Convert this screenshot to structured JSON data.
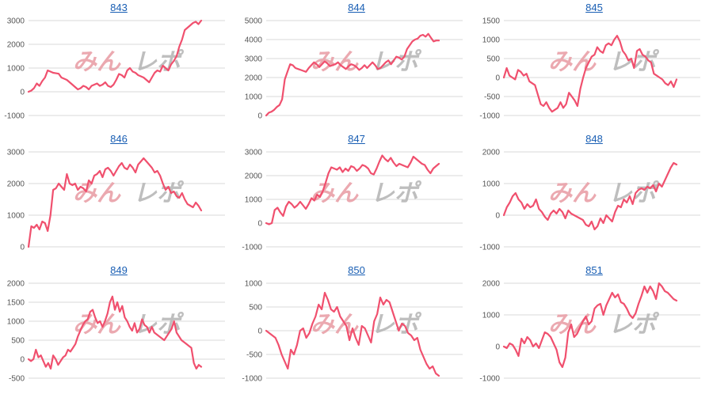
{
  "colors": {
    "line": "#f0506e",
    "grid": "#d9d9d9",
    "watermark_pink": "#e9a0a8",
    "watermark_gray": "#b8b8b8"
  },
  "watermark": {
    "left": "みん",
    "right": "レポ"
  },
  "chart_data": [
    {
      "type": "line",
      "title": "843",
      "ylim": [
        -1000,
        3000
      ],
      "yticks": [
        -1000,
        0,
        1000,
        2000,
        3000
      ],
      "values": [
        0,
        50,
        150,
        350,
        250,
        450,
        600,
        900,
        850,
        800,
        780,
        760,
        600,
        550,
        500,
        400,
        300,
        200,
        100,
        150,
        250,
        200,
        100,
        250,
        300,
        350,
        250,
        300,
        400,
        250,
        200,
        300,
        500,
        750,
        700,
        600,
        900,
        1000,
        850,
        800,
        700,
        650,
        600,
        500,
        400,
        600,
        800,
        900,
        850,
        1100,
        1000,
        900,
        1150,
        1300,
        1500,
        1900,
        2200,
        2600,
        2700,
        2800,
        2900,
        2950,
        2850,
        3000
      ]
    },
    {
      "type": "line",
      "title": "844",
      "ylim": [
        0,
        5000
      ],
      "yticks": [
        0,
        1000,
        2000,
        3000,
        4000,
        5000
      ],
      "values": [
        0,
        150,
        200,
        300,
        450,
        550,
        850,
        1900,
        2300,
        2700,
        2650,
        2500,
        2450,
        2400,
        2350,
        2300,
        2500,
        2650,
        2800,
        2700,
        2550,
        2700,
        2850,
        2750,
        2600,
        2650,
        2700,
        2800,
        2650,
        2550,
        2450,
        2600,
        2700,
        2650,
        2550,
        2400,
        2500,
        2650,
        2500,
        2650,
        2800,
        2650,
        2450,
        2500,
        2650,
        2800,
        2900,
        2700,
        2900,
        3100,
        3050,
        2950,
        3100,
        3500,
        3700,
        3900,
        4000,
        4050,
        4200,
        4250,
        4150,
        4300,
        4100,
        3900,
        3950,
        3950
      ]
    },
    {
      "type": "line",
      "title": "845",
      "ylim": [
        -1000,
        1500
      ],
      "yticks": [
        -1000,
        -500,
        0,
        500,
        1000,
        1500
      ],
      "values": [
        0,
        250,
        50,
        0,
        -50,
        200,
        150,
        50,
        100,
        -100,
        -150,
        -200,
        -450,
        -700,
        -750,
        -650,
        -800,
        -900,
        -850,
        -800,
        -650,
        -800,
        -700,
        -400,
        -500,
        -600,
        -750,
        -300,
        0,
        250,
        400,
        550,
        600,
        800,
        700,
        650,
        850,
        900,
        850,
        1000,
        1100,
        950,
        700,
        600,
        450,
        500,
        250,
        700,
        750,
        600,
        550,
        450,
        400,
        100,
        50,
        0,
        -50,
        -150,
        -200,
        -100,
        -250,
        -50
      ]
    },
    {
      "type": "line",
      "title": "846",
      "ylim": [
        0,
        3000
      ],
      "yticks": [
        0,
        1000,
        2000,
        3000
      ],
      "values": [
        0,
        650,
        600,
        700,
        550,
        800,
        750,
        500,
        1000,
        1800,
        1850,
        2000,
        1900,
        1800,
        2300,
        2000,
        1950,
        2000,
        1800,
        1900,
        1850,
        1750,
        2100,
        2000,
        2250,
        2300,
        2400,
        2200,
        2450,
        2500,
        2400,
        2250,
        2400,
        2550,
        2650,
        2500,
        2450,
        2600,
        2500,
        2350,
        2600,
        2700,
        2800,
        2700,
        2600,
        2500,
        2350,
        2400,
        2250,
        2000,
        1800,
        1900,
        1700,
        1750,
        1600,
        1550,
        1700,
        1500,
        1350,
        1300,
        1250,
        1400,
        1300,
        1150
      ]
    },
    {
      "type": "line",
      "title": "847",
      "ylim": [
        -1000,
        3000
      ],
      "yticks": [
        -1000,
        0,
        1000,
        2000,
        3000
      ],
      "values": [
        0,
        -50,
        0,
        550,
        650,
        450,
        300,
        700,
        900,
        800,
        650,
        750,
        900,
        750,
        600,
        800,
        1050,
        950,
        1200,
        1100,
        1350,
        1700,
        2100,
        2350,
        2300,
        2250,
        2350,
        2150,
        2300,
        2200,
        2400,
        2350,
        2200,
        2300,
        2450,
        2400,
        2300,
        2100,
        2050,
        2300,
        2600,
        2850,
        2700,
        2600,
        2750,
        2550,
        2400,
        2500,
        2450,
        2400,
        2350,
        2550,
        2800,
        2700,
        2600,
        2500,
        2450,
        2250,
        2100,
        2300,
        2400,
        2500
      ]
    },
    {
      "type": "line",
      "title": "848",
      "ylim": [
        -1000,
        2000
      ],
      "yticks": [
        -1000,
        0,
        1000,
        2000
      ],
      "values": [
        0,
        250,
        400,
        600,
        700,
        500,
        400,
        200,
        350,
        250,
        300,
        500,
        200,
        100,
        -50,
        -150,
        50,
        150,
        50,
        200,
        100,
        -100,
        150,
        50,
        0,
        -50,
        -100,
        -150,
        -300,
        -350,
        -200,
        -450,
        -350,
        -100,
        -250,
        0,
        -100,
        -200,
        100,
        300,
        250,
        500,
        400,
        600,
        350,
        700,
        800,
        850,
        800,
        900,
        850,
        950,
        750,
        1000,
        900,
        1100,
        1300,
        1500,
        1650,
        1600
      ]
    },
    {
      "type": "line",
      "title": "849",
      "ylim": [
        -500,
        2000
      ],
      "yticks": [
        -500,
        0,
        500,
        1000,
        1500,
        2000
      ],
      "values": [
        0,
        -50,
        0,
        250,
        50,
        100,
        -50,
        -200,
        -100,
        -250,
        100,
        0,
        -150,
        -50,
        50,
        100,
        250,
        200,
        300,
        400,
        600,
        750,
        900,
        1000,
        1050,
        1250,
        1300,
        1100,
        950,
        1000,
        850,
        1000,
        1200,
        1500,
        1650,
        1300,
        1500,
        1250,
        1400,
        1100,
        1000,
        850,
        750,
        950,
        700,
        800,
        1050,
        900,
        850,
        700,
        850,
        700,
        650,
        600,
        550,
        500,
        600,
        700,
        800,
        1000,
        700,
        600,
        500,
        450,
        400,
        350,
        300,
        -100,
        -250,
        -150,
        -200
      ]
    },
    {
      "type": "line",
      "title": "850",
      "ylim": [
        -1000,
        1000
      ],
      "yticks": [
        -1000,
        -500,
        0,
        500,
        1000
      ],
      "values": [
        0,
        -50,
        -100,
        -150,
        -300,
        -500,
        -650,
        -800,
        -400,
        -500,
        -300,
        0,
        50,
        -150,
        -50,
        150,
        300,
        550,
        450,
        800,
        650,
        450,
        400,
        500,
        300,
        200,
        100,
        -200,
        50,
        -150,
        -300,
        100,
        50,
        -100,
        -250,
        200,
        350,
        700,
        550,
        650,
        600,
        400,
        200,
        0,
        150,
        100,
        -50,
        -100,
        -200,
        -150,
        -400,
        -550,
        -700,
        -800,
        -750,
        -900,
        -950
      ]
    },
    {
      "type": "line",
      "title": "851",
      "ylim": [
        -1000,
        2000
      ],
      "yticks": [
        -1000,
        0,
        1000,
        2000
      ],
      "values": [
        0,
        -50,
        100,
        50,
        -100,
        -300,
        250,
        100,
        300,
        200,
        0,
        100,
        -50,
        200,
        450,
        400,
        300,
        100,
        -100,
        -500,
        -650,
        -350,
        450,
        700,
        300,
        400,
        600,
        800,
        950,
        700,
        800,
        1200,
        1300,
        1350,
        1000,
        1300,
        1500,
        1700,
        1550,
        1650,
        1400,
        1350,
        1200,
        1000,
        900,
        1050,
        1350,
        1600,
        1900,
        1700,
        1900,
        1750,
        1500,
        2000,
        1900,
        1750,
        1700,
        1600,
        1500,
        1450
      ]
    }
  ]
}
